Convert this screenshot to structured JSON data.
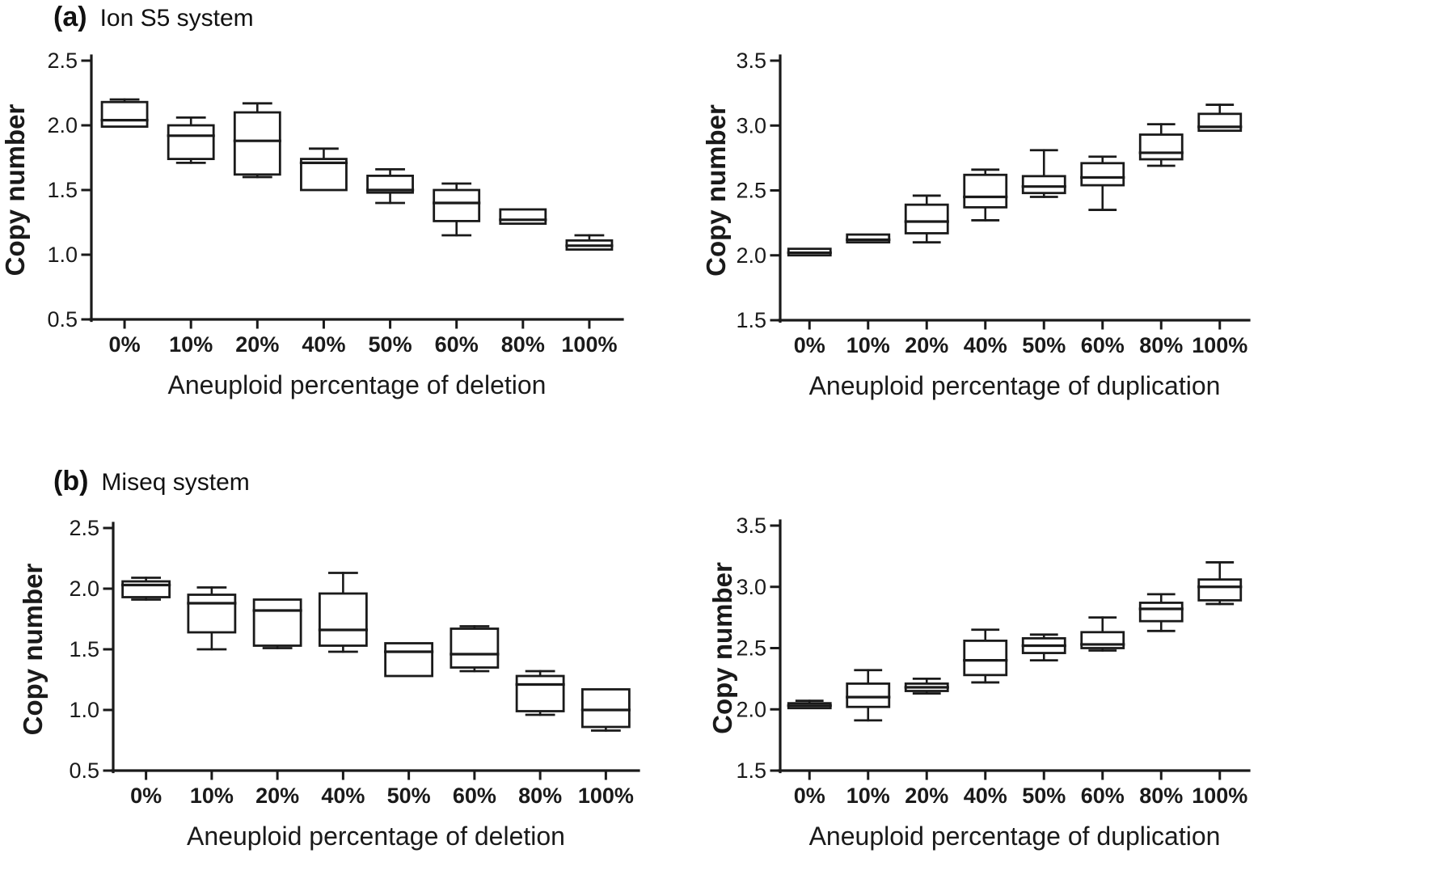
{
  "colors": {
    "ink": "#1a1a1a",
    "background": "#ffffff"
  },
  "panels": [
    {
      "label": "(a)",
      "title": "Ion S5 system"
    },
    {
      "label": "(b)",
      "title": "Miseq system"
    }
  ],
  "chart_data": [
    {
      "type": "box",
      "panel": "(a) Ion S5 system",
      "xlabel": "Aneuploid percentage of deletion",
      "ylabel": "Copy number",
      "categories": [
        "0%",
        "10%",
        "20%",
        "40%",
        "50%",
        "60%",
        "80%",
        "100%"
      ],
      "ylim": [
        0.5,
        2.5
      ],
      "yticks": [
        0.5,
        1.0,
        1.5,
        2.0,
        2.5
      ],
      "grid": false,
      "boxes": [
        {
          "category": "0%",
          "min": 1.98,
          "q1": 1.99,
          "median": 2.04,
          "q3": 2.18,
          "max": 2.2
        },
        {
          "category": "10%",
          "min": 1.71,
          "q1": 1.74,
          "median": 1.92,
          "q3": 2.0,
          "max": 2.06
        },
        {
          "category": "20%",
          "min": 1.6,
          "q1": 1.62,
          "median": 1.88,
          "q3": 2.1,
          "max": 2.17
        },
        {
          "category": "40%",
          "min": 1.5,
          "q1": 1.5,
          "median": 1.71,
          "q3": 1.74,
          "max": 1.82
        },
        {
          "category": "50%",
          "min": 1.4,
          "q1": 1.48,
          "median": 1.5,
          "q3": 1.61,
          "max": 1.66
        },
        {
          "category": "60%",
          "min": 1.15,
          "q1": 1.26,
          "median": 1.4,
          "q3": 1.5,
          "max": 1.55
        },
        {
          "category": "80%",
          "min": 1.24,
          "q1": 1.24,
          "median": 1.27,
          "q3": 1.35,
          "max": 1.35
        },
        {
          "category": "100%",
          "min": 1.04,
          "q1": 1.04,
          "median": 1.07,
          "q3": 1.11,
          "max": 1.15
        }
      ]
    },
    {
      "type": "box",
      "panel": "(a) Ion S5 system",
      "xlabel": "Aneuploid percentage of duplication",
      "ylabel": "Copy number",
      "categories": [
        "0%",
        "10%",
        "20%",
        "40%",
        "50%",
        "60%",
        "80%",
        "100%"
      ],
      "ylim": [
        1.5,
        3.5
      ],
      "yticks": [
        1.5,
        2.0,
        2.5,
        3.0,
        3.5
      ],
      "grid": false,
      "boxes": [
        {
          "category": "0%",
          "min": 2.0,
          "q1": 2.0,
          "median": 2.02,
          "q3": 2.05,
          "max": 2.05
        },
        {
          "category": "10%",
          "min": 2.09,
          "q1": 2.1,
          "median": 2.12,
          "q3": 2.16,
          "max": 2.16
        },
        {
          "category": "20%",
          "min": 2.1,
          "q1": 2.17,
          "median": 2.26,
          "q3": 2.39,
          "max": 2.46
        },
        {
          "category": "40%",
          "min": 2.27,
          "q1": 2.37,
          "median": 2.45,
          "q3": 2.62,
          "max": 2.66
        },
        {
          "category": "50%",
          "min": 2.45,
          "q1": 2.48,
          "median": 2.53,
          "q3": 2.61,
          "max": 2.81
        },
        {
          "category": "60%",
          "min": 2.35,
          "q1": 2.54,
          "median": 2.6,
          "q3": 2.71,
          "max": 2.76
        },
        {
          "category": "80%",
          "min": 2.69,
          "q1": 2.74,
          "median": 2.79,
          "q3": 2.93,
          "max": 3.01
        },
        {
          "category": "100%",
          "min": 2.95,
          "q1": 2.96,
          "median": 2.99,
          "q3": 3.09,
          "max": 3.16
        }
      ]
    },
    {
      "type": "box",
      "panel": "(b) Miseq system",
      "xlabel": "Aneuploid percentage of deletion",
      "ylabel": "Copy number",
      "categories": [
        "0%",
        "10%",
        "20%",
        "40%",
        "50%",
        "60%",
        "80%",
        "100%"
      ],
      "ylim": [
        0.5,
        2.5
      ],
      "yticks": [
        0.5,
        1.0,
        1.5,
        2.0,
        2.5
      ],
      "grid": false,
      "boxes": [
        {
          "category": "0%",
          "min": 1.91,
          "q1": 1.93,
          "median": 2.03,
          "q3": 2.06,
          "max": 2.09
        },
        {
          "category": "10%",
          "min": 1.5,
          "q1": 1.64,
          "median": 1.88,
          "q3": 1.95,
          "max": 2.01
        },
        {
          "category": "20%",
          "min": 1.51,
          "q1": 1.53,
          "median": 1.82,
          "q3": 1.91,
          "max": 1.92
        },
        {
          "category": "40%",
          "min": 1.48,
          "q1": 1.53,
          "median": 1.66,
          "q3": 1.96,
          "max": 2.13
        },
        {
          "category": "50%",
          "min": 1.27,
          "q1": 1.28,
          "median": 1.48,
          "q3": 1.55,
          "max": 1.56
        },
        {
          "category": "60%",
          "min": 1.32,
          "q1": 1.35,
          "median": 1.46,
          "q3": 1.67,
          "max": 1.69
        },
        {
          "category": "80%",
          "min": 0.96,
          "q1": 0.99,
          "median": 1.21,
          "q3": 1.28,
          "max": 1.32
        },
        {
          "category": "100%",
          "min": 0.83,
          "q1": 0.86,
          "median": 1.0,
          "q3": 1.17,
          "max": 1.17
        }
      ]
    },
    {
      "type": "box",
      "panel": "(b) Miseq system",
      "xlabel": "Aneuploid percentage of duplication",
      "ylabel": "Copy number",
      "categories": [
        "0%",
        "10%",
        "20%",
        "40%",
        "50%",
        "60%",
        "80%",
        "100%"
      ],
      "ylim": [
        1.5,
        3.5
      ],
      "yticks": [
        1.5,
        2.0,
        2.5,
        3.0,
        3.5
      ],
      "grid": false,
      "boxes": [
        {
          "category": "0%",
          "min": 2.0,
          "q1": 2.01,
          "median": 2.03,
          "q3": 2.05,
          "max": 2.07
        },
        {
          "category": "10%",
          "min": 1.91,
          "q1": 2.02,
          "median": 2.1,
          "q3": 2.21,
          "max": 2.32
        },
        {
          "category": "20%",
          "min": 2.13,
          "q1": 2.15,
          "median": 2.18,
          "q3": 2.21,
          "max": 2.25
        },
        {
          "category": "40%",
          "min": 2.22,
          "q1": 2.28,
          "median": 2.4,
          "q3": 2.56,
          "max": 2.65
        },
        {
          "category": "50%",
          "min": 2.4,
          "q1": 2.46,
          "median": 2.52,
          "q3": 2.58,
          "max": 2.61
        },
        {
          "category": "60%",
          "min": 2.48,
          "q1": 2.5,
          "median": 2.53,
          "q3": 2.63,
          "max": 2.75
        },
        {
          "category": "80%",
          "min": 2.64,
          "q1": 2.72,
          "median": 2.82,
          "q3": 2.87,
          "max": 2.94
        },
        {
          "category": "100%",
          "min": 2.86,
          "q1": 2.89,
          "median": 3.0,
          "q3": 3.06,
          "max": 3.2
        }
      ]
    }
  ]
}
